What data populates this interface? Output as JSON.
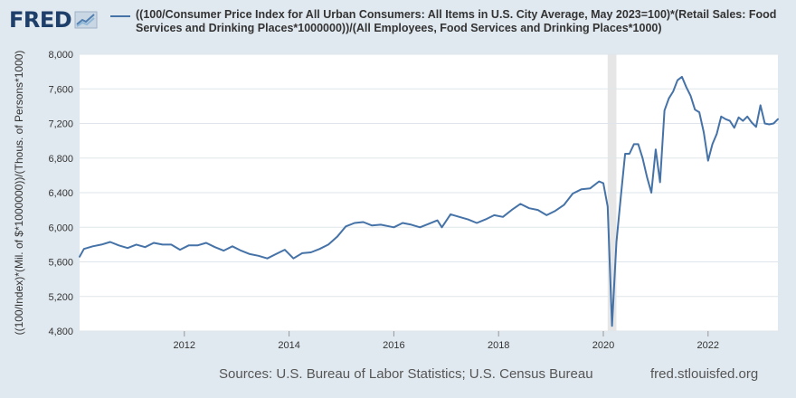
{
  "logo": {
    "text": "FRED"
  },
  "footer": {
    "sources": "Sources: U.S. Bureau of Labor Statistics; U.S. Census Bureau",
    "site": "fred.stlouisfed.org"
  },
  "colors": {
    "line": "#4572a7",
    "plot_bg": "#ffffff",
    "page_bg": "#e1e9f0",
    "grid": "#dfe5ea",
    "recession": "#e6e6e6"
  },
  "chart_data": {
    "type": "line",
    "series": [
      {
        "name": "((100/Consumer Price Index for All Urban Consumers: All Items in U.S. City Average, May 2023=100)*(Retail Sales: Food Services and Drinking Places*1000000))/(All Employees, Food Services and Drinking Places*1000)",
        "x": [
          "2010-01",
          "2010-02",
          "2010-04",
          "2010-06",
          "2010-08",
          "2010-10",
          "2010-12",
          "2011-02",
          "2011-04",
          "2011-06",
          "2011-08",
          "2011-10",
          "2011-12",
          "2012-02",
          "2012-04",
          "2012-06",
          "2012-08",
          "2012-10",
          "2012-12",
          "2013-02",
          "2013-04",
          "2013-06",
          "2013-08",
          "2013-10",
          "2013-12",
          "2014-02",
          "2014-04",
          "2014-06",
          "2014-08",
          "2014-10",
          "2014-12",
          "2015-02",
          "2015-04",
          "2015-06",
          "2015-08",
          "2015-10",
          "2015-12",
          "2016-01",
          "2016-03",
          "2016-05",
          "2016-07",
          "2016-09",
          "2016-11",
          "2016-12",
          "2017-02",
          "2017-04",
          "2017-06",
          "2017-08",
          "2017-10",
          "2017-12",
          "2018-02",
          "2018-04",
          "2018-06",
          "2018-08",
          "2018-10",
          "2018-12",
          "2019-02",
          "2019-04",
          "2019-06",
          "2019-08",
          "2019-10",
          "2019-12",
          "2020-01",
          "2020-02",
          "2020-03",
          "2020-04",
          "2020-05",
          "2020-06",
          "2020-07",
          "2020-08",
          "2020-09",
          "2020-10",
          "2020-11",
          "2020-12",
          "2021-01",
          "2021-02",
          "2021-03",
          "2021-04",
          "2021-05",
          "2021-06",
          "2021-07",
          "2021-08",
          "2021-09",
          "2021-10",
          "2021-11",
          "2021-12",
          "2022-01",
          "2022-02",
          "2022-03",
          "2022-04",
          "2022-05",
          "2022-06",
          "2022-07",
          "2022-08",
          "2022-09",
          "2022-10",
          "2022-11",
          "2022-12",
          "2023-01",
          "2023-02",
          "2023-03",
          "2023-04",
          "2023-05"
        ],
        "values": [
          5660,
          5750,
          5780,
          5800,
          5830,
          5790,
          5760,
          5800,
          5770,
          5820,
          5800,
          5800,
          5740,
          5790,
          5790,
          5820,
          5770,
          5730,
          5780,
          5730,
          5690,
          5670,
          5640,
          5690,
          5740,
          5640,
          5700,
          5710,
          5750,
          5800,
          5890,
          6010,
          6050,
          6060,
          6020,
          6030,
          6010,
          6000,
          6050,
          6030,
          6000,
          6040,
          6080,
          6000,
          6150,
          6120,
          6090,
          6050,
          6090,
          6140,
          6120,
          6200,
          6270,
          6220,
          6200,
          6140,
          6190,
          6260,
          6390,
          6440,
          6450,
          6530,
          6510,
          6240,
          4860,
          5830,
          6350,
          6850,
          6850,
          6960,
          6960,
          6800,
          6580,
          6400,
          6900,
          6520,
          7350,
          7490,
          7570,
          7700,
          7740,
          7620,
          7520,
          7360,
          7330,
          7100,
          6770,
          6960,
          7080,
          7280,
          7250,
          7230,
          7150,
          7270,
          7230,
          7280,
          7210,
          7160,
          7410,
          7200,
          7190,
          7200,
          7250
        ]
      }
    ],
    "xlim": [
      "2010-01",
      "2023-05"
    ],
    "ylim": [
      4800,
      8000
    ],
    "yticks": [
      4800,
      5200,
      5600,
      6000,
      6400,
      6800,
      7200,
      7600,
      8000
    ],
    "ytick_labels": [
      "4,800",
      "5,200",
      "5,600",
      "6,000",
      "6,400",
      "6,800",
      "7,200",
      "7,600",
      "8,000"
    ],
    "xticks": [
      "2012-01",
      "2014-01",
      "2016-01",
      "2018-01",
      "2020-01",
      "2022-01"
    ],
    "xtick_labels": [
      "2012",
      "2014",
      "2016",
      "2018",
      "2020",
      "2022"
    ],
    "ylabel": "((100/Index)*(Mil. of $*1000000))/(Thous. of Persons*1000)",
    "recession": [
      "2020-02",
      "2020-04"
    ],
    "grid": true,
    "legend": "top"
  }
}
